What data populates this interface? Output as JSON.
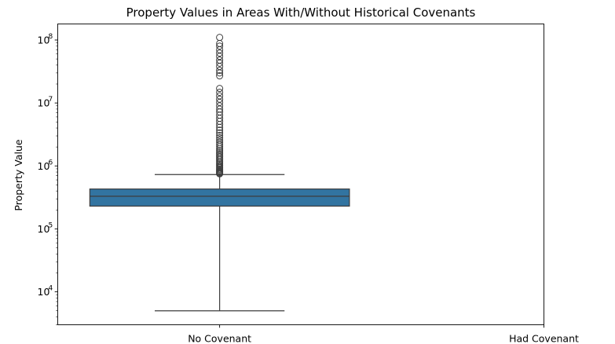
{
  "chart_data": {
    "type": "boxplot",
    "title": "Property Values in Areas With/Without Historical Covenants",
    "xlabel": "",
    "ylabel": "Property Value",
    "yscale": "log",
    "ylim": [
      3000,
      180000000
    ],
    "yticks": [
      {
        "value": 10000,
        "base": "10",
        "exp": "4"
      },
      {
        "value": 100000,
        "base": "10",
        "exp": "5"
      },
      {
        "value": 1000000,
        "base": "10",
        "exp": "6"
      },
      {
        "value": 10000000,
        "base": "10",
        "exp": "7"
      },
      {
        "value": 100000000,
        "base": "10",
        "exp": "8"
      }
    ],
    "categories": [
      "No Covenant",
      "Had Covenant"
    ],
    "boxes": [
      {
        "category": "No Covenant",
        "whisker_low": 5000,
        "q1": 230000,
        "median": 330000,
        "q3": 430000,
        "whisker_high": 730000,
        "fill": "#3274a1",
        "outliers": [
          750000,
          770000,
          790000,
          810000,
          840000,
          870000,
          900000,
          940000,
          980000,
          1020000,
          1070000,
          1120000,
          1180000,
          1250000,
          1320000,
          1400000,
          1480000,
          1570000,
          1670000,
          1780000,
          1900000,
          2050000,
          2200000,
          2380000,
          2580000,
          2800000,
          3050000,
          3350000,
          3700000,
          4100000,
          4550000,
          5100000,
          5700000,
          6400000,
          7200000,
          8000000,
          9000000,
          10200000,
          11500000,
          13000000,
          14800000,
          17000000,
          27000000,
          30000000,
          33000000,
          38000000,
          43000000,
          48000000,
          55000000,
          62000000,
          70000000,
          80000000,
          88000000,
          110000000
        ]
      },
      {
        "category": "Had Covenant",
        "empty": true
      }
    ]
  }
}
